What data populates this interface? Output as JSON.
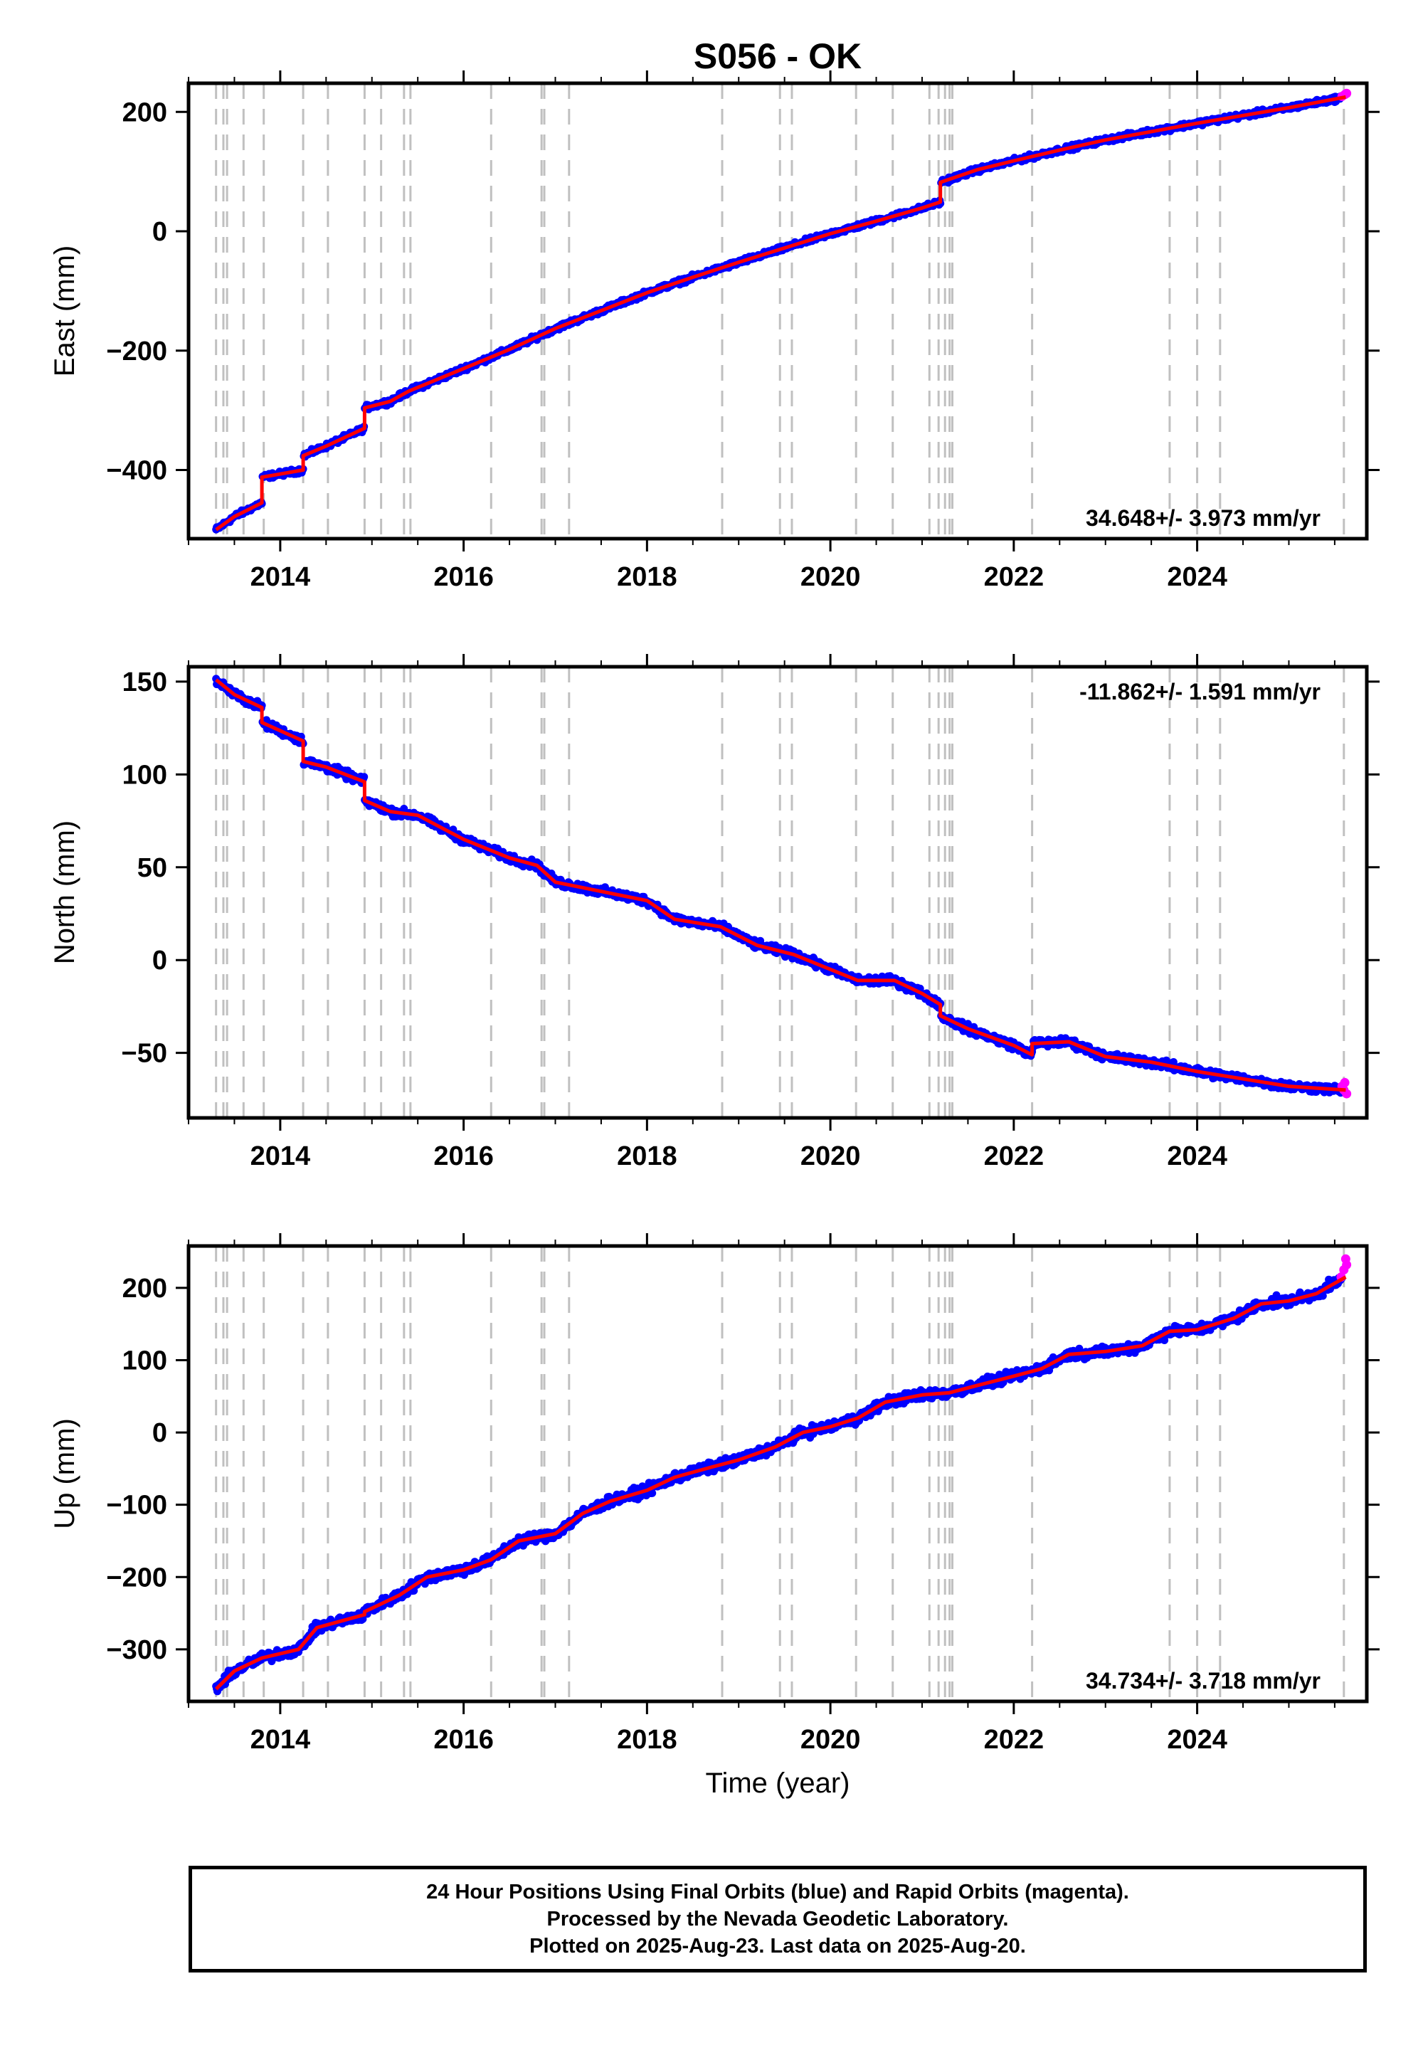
{
  "title": "S056 - OK",
  "colors": {
    "final_orbits": "#0000ff",
    "rapid_orbits": "#ff00ff",
    "model": "#ff0000",
    "event_lines": "#c0c0c0",
    "frame": "#000000"
  },
  "chart_data": [
    {
      "type": "scatter",
      "panel": "east",
      "ylabel": "East (mm)",
      "xlabel": "",
      "xlim": [
        2013.0,
        2025.85
      ],
      "ylim": [
        -515,
        248
      ],
      "xticks": [
        2014,
        2016,
        2018,
        2020,
        2022,
        2024
      ],
      "yticks": [
        -400,
        -200,
        0,
        200
      ],
      "ytick_labels": [
        "−400",
        "−200",
        "0",
        "200"
      ],
      "rate_label": "34.648+/- 3.973 mm/yr",
      "rate_position": "bottom-right",
      "model_line": [
        [
          2013.3,
          -500
        ],
        [
          2013.5,
          -478
        ],
        [
          2013.8,
          -455
        ],
        [
          2013.8,
          -412
        ],
        [
          2014.25,
          -400
        ],
        [
          2014.25,
          -376
        ],
        [
          2014.5,
          -360
        ],
        [
          2014.92,
          -330
        ],
        [
          2014.92,
          -296
        ],
        [
          2015.2,
          -285
        ],
        [
          2015.4,
          -268
        ],
        [
          2016.0,
          -230
        ],
        [
          2016.5,
          -198
        ],
        [
          2017.0,
          -163
        ],
        [
          2017.5,
          -133
        ],
        [
          2018.0,
          -103
        ],
        [
          2018.5,
          -77
        ],
        [
          2019.0,
          -52
        ],
        [
          2019.5,
          -28
        ],
        [
          2020.0,
          -4
        ],
        [
          2020.5,
          17
        ],
        [
          2021.0,
          39
        ],
        [
          2021.2,
          49
        ],
        [
          2021.2,
          82
        ],
        [
          2021.6,
          103
        ],
        [
          2022.0,
          118
        ],
        [
          2022.5,
          136
        ],
        [
          2023.0,
          153
        ],
        [
          2023.5,
          167
        ],
        [
          2024.0,
          181
        ],
        [
          2024.5,
          194
        ],
        [
          2025.0,
          207
        ],
        [
          2025.62,
          225
        ]
      ],
      "rapid_points": [
        [
          2025.58,
          226
        ],
        [
          2025.61,
          229
        ],
        [
          2025.63,
          231
        ]
      ]
    },
    {
      "type": "scatter",
      "panel": "north",
      "ylabel": "North (mm)",
      "xlabel": "",
      "xlim": [
        2013.0,
        2025.85
      ],
      "ylim": [
        -85,
        158
      ],
      "xticks": [
        2014,
        2016,
        2018,
        2020,
        2022,
        2024
      ],
      "yticks": [
        -50,
        0,
        50,
        100,
        150
      ],
      "ytick_labels": [
        "−50",
        "0",
        "50",
        "100",
        "150"
      ],
      "rate_label": "-11.862+/- 1.591 mm/yr",
      "rate_position": "top-right",
      "model_line": [
        [
          2013.3,
          151
        ],
        [
          2013.5,
          143
        ],
        [
          2013.8,
          136
        ],
        [
          2013.8,
          128
        ],
        [
          2014.25,
          118
        ],
        [
          2014.25,
          107
        ],
        [
          2014.5,
          104
        ],
        [
          2014.92,
          96
        ],
        [
          2014.92,
          86
        ],
        [
          2015.2,
          80
        ],
        [
          2015.5,
          78
        ],
        [
          2016.0,
          65
        ],
        [
          2016.5,
          55
        ],
        [
          2016.8,
          51
        ],
        [
          2017.0,
          42
        ],
        [
          2017.5,
          37
        ],
        [
          2018.0,
          32
        ],
        [
          2018.3,
          22
        ],
        [
          2018.8,
          18
        ],
        [
          2019.2,
          8
        ],
        [
          2019.6,
          3
        ],
        [
          2020.0,
          -5
        ],
        [
          2020.3,
          -11
        ],
        [
          2020.7,
          -11
        ],
        [
          2021.0,
          -18
        ],
        [
          2021.2,
          -24
        ],
        [
          2021.2,
          -30
        ],
        [
          2021.5,
          -37
        ],
        [
          2022.0,
          -46
        ],
        [
          2022.2,
          -51
        ],
        [
          2022.2,
          -45
        ],
        [
          2022.6,
          -44
        ],
        [
          2023.0,
          -52
        ],
        [
          2023.5,
          -55
        ],
        [
          2024.0,
          -60
        ],
        [
          2024.5,
          -64
        ],
        [
          2025.0,
          -68
        ],
        [
          2025.62,
          -70
        ]
      ],
      "rapid_points": [
        [
          2025.58,
          -68
        ],
        [
          2025.61,
          -66
        ],
        [
          2025.63,
          -72
        ],
        [
          2025.6,
          -70
        ]
      ]
    },
    {
      "type": "scatter",
      "panel": "up",
      "ylabel": "Up (mm)",
      "xlabel": "Time (year)",
      "xlim": [
        2013.0,
        2025.85
      ],
      "ylim": [
        -372,
        258
      ],
      "xticks": [
        2014,
        2016,
        2018,
        2020,
        2022,
        2024
      ],
      "yticks": [
        -300,
        -200,
        -100,
        0,
        100,
        200
      ],
      "ytick_labels": [
        "−300",
        "−200",
        "−100",
        "0",
        "100",
        "200"
      ],
      "rate_label": "34.734+/- 3.718 mm/yr",
      "rate_position": "bottom-right",
      "model_line": [
        [
          2013.3,
          -355
        ],
        [
          2013.5,
          -330
        ],
        [
          2013.8,
          -312
        ],
        [
          2014.2,
          -300
        ],
        [
          2014.4,
          -270
        ],
        [
          2014.92,
          -252
        ],
        [
          2014.92,
          -248
        ],
        [
          2015.3,
          -225
        ],
        [
          2015.6,
          -200
        ],
        [
          2016.0,
          -190
        ],
        [
          2016.3,
          -176
        ],
        [
          2016.6,
          -150
        ],
        [
          2017.0,
          -140
        ],
        [
          2017.3,
          -112
        ],
        [
          2017.6,
          -95
        ],
        [
          2018.0,
          -80
        ],
        [
          2018.3,
          -62
        ],
        [
          2018.7,
          -48
        ],
        [
          2019.0,
          -38
        ],
        [
          2019.4,
          -20
        ],
        [
          2019.7,
          0
        ],
        [
          2020.0,
          8
        ],
        [
          2020.3,
          20
        ],
        [
          2020.6,
          42
        ],
        [
          2021.0,
          52
        ],
        [
          2021.3,
          55
        ],
        [
          2021.6,
          65
        ],
        [
          2022.0,
          78
        ],
        [
          2022.3,
          88
        ],
        [
          2022.6,
          108
        ],
        [
          2023.0,
          112
        ],
        [
          2023.4,
          120
        ],
        [
          2023.7,
          140
        ],
        [
          2024.0,
          142
        ],
        [
          2024.4,
          158
        ],
        [
          2024.7,
          178
        ],
        [
          2025.0,
          182
        ],
        [
          2025.3,
          192
        ],
        [
          2025.62,
          215
        ]
      ],
      "rapid_points": [
        [
          2025.57,
          215
        ],
        [
          2025.6,
          225
        ],
        [
          2025.62,
          240
        ],
        [
          2025.63,
          232
        ]
      ]
    }
  ],
  "event_lines": [
    2013.3,
    2013.38,
    2013.42,
    2013.6,
    2013.82,
    2014.25,
    2014.52,
    2014.92,
    2015.1,
    2015.35,
    2015.42,
    2016.3,
    2016.85,
    2016.88,
    2017.15,
    2018.82,
    2019.45,
    2019.58,
    2020.28,
    2020.68,
    2021.08,
    2021.18,
    2021.25,
    2021.3,
    2021.33,
    2022.2,
    2023.7,
    2024.0,
    2024.25,
    2025.6
  ],
  "footer": {
    "line1": "24 Hour Positions Using Final Orbits (blue) and Rapid Orbits (magenta).",
    "line2": "Processed by the Nevada Geodetic Laboratory.",
    "line3": "Plotted on 2025-Aug-23. Last data on 2025-Aug-20."
  }
}
